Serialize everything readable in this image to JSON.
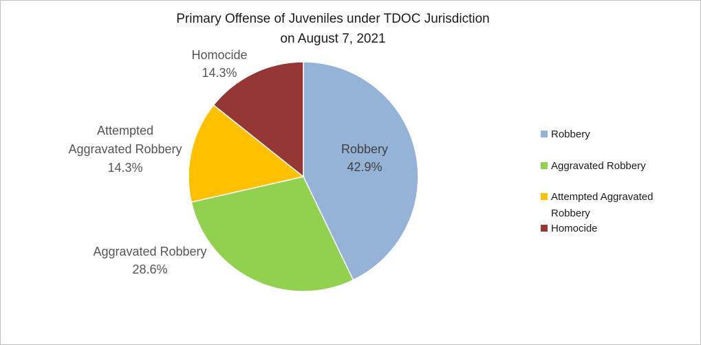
{
  "chart_data": {
    "type": "pie",
    "title_lines": [
      "Primary Offense of Juveniles under TDOC Jurisdiction",
      "on August 7, 2021"
    ],
    "slices": [
      {
        "name": "Robbery",
        "value": 42.9,
        "label_lines": [
          "Robbery",
          "42.9%"
        ],
        "color": "#95b3d7"
      },
      {
        "name": "Aggravated Robbery",
        "value": 28.6,
        "label_lines": [
          "Aggravated Robbery",
          "28.6%"
        ],
        "color": "#92d050"
      },
      {
        "name": "Attempted Aggravated Robbery",
        "value": 14.3,
        "label_lines": [
          "Attempted",
          "Aggravated Robbery",
          "14.3%"
        ],
        "color": "#ffc000"
      },
      {
        "name": "Homocide",
        "value": 14.3,
        "label_lines": [
          "Homocide",
          "14.3%"
        ],
        "color": "#953735"
      }
    ],
    "legend": {
      "position": "right",
      "items": [
        {
          "label_lines": [
            "Robbery"
          ],
          "color": "#95b3d7"
        },
        {
          "label_lines": [
            "Aggravated Robbery"
          ],
          "color": "#92d050"
        },
        {
          "label_lines": [
            "Attempted Aggravated",
            "Robbery"
          ],
          "color": "#ffc000"
        },
        {
          "label_lines": [
            "Homocide"
          ],
          "color": "#953735"
        }
      ]
    }
  }
}
